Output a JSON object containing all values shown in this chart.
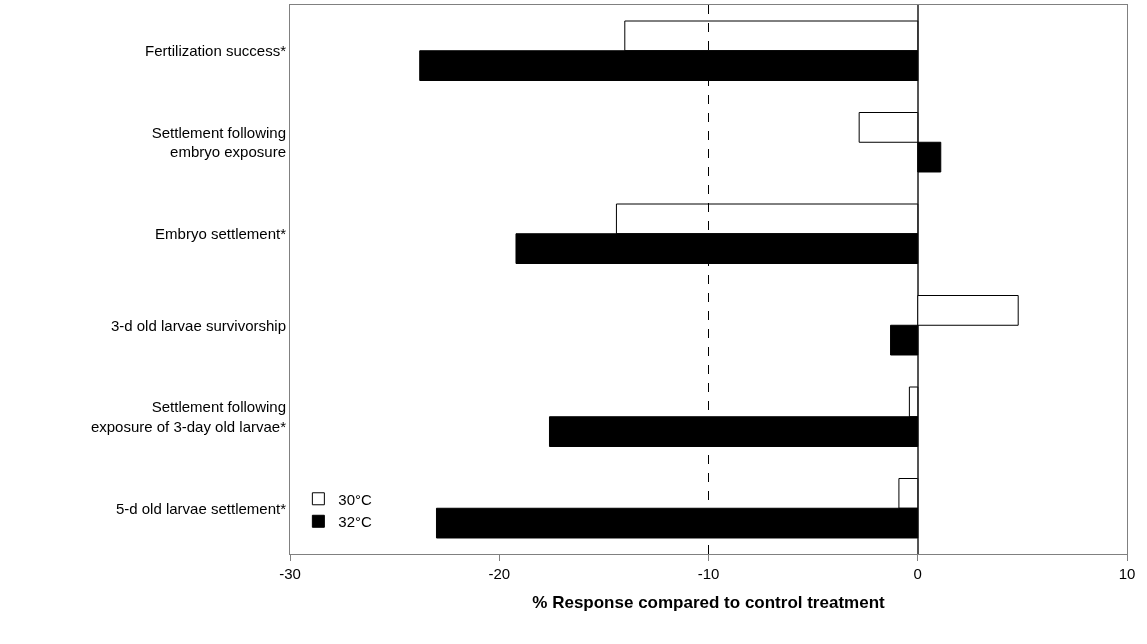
{
  "chart_data": {
    "type": "bar",
    "orientation": "horizontal",
    "xlabel": "% Response compared to control treatment",
    "categories": [
      "Fertilization success*",
      "Settlement following\nembryo exposure",
      "Embryo settlement*",
      "3-d old larvae survivorship",
      "Settlement following\nexposure of 3-day old larvae*",
      "5-d old larvae settlement*"
    ],
    "series": [
      {
        "name": "30°C",
        "color": "#ffffff",
        "values": [
          -14.0,
          -2.8,
          -14.4,
          4.8,
          -0.4,
          -0.9
        ]
      },
      {
        "name": "32°C",
        "color": "#000000",
        "values": [
          -23.8,
          1.1,
          -19.2,
          -1.3,
          -17.6,
          -23.0
        ]
      }
    ],
    "xlim": [
      -30,
      10
    ],
    "xticks": [
      -30,
      -20,
      -10,
      0,
      10
    ],
    "ref_lines": [
      {
        "axis": "x",
        "value": -10,
        "line_style": "dashed",
        "color": "#000000"
      }
    ],
    "legend": "bottom left"
  }
}
